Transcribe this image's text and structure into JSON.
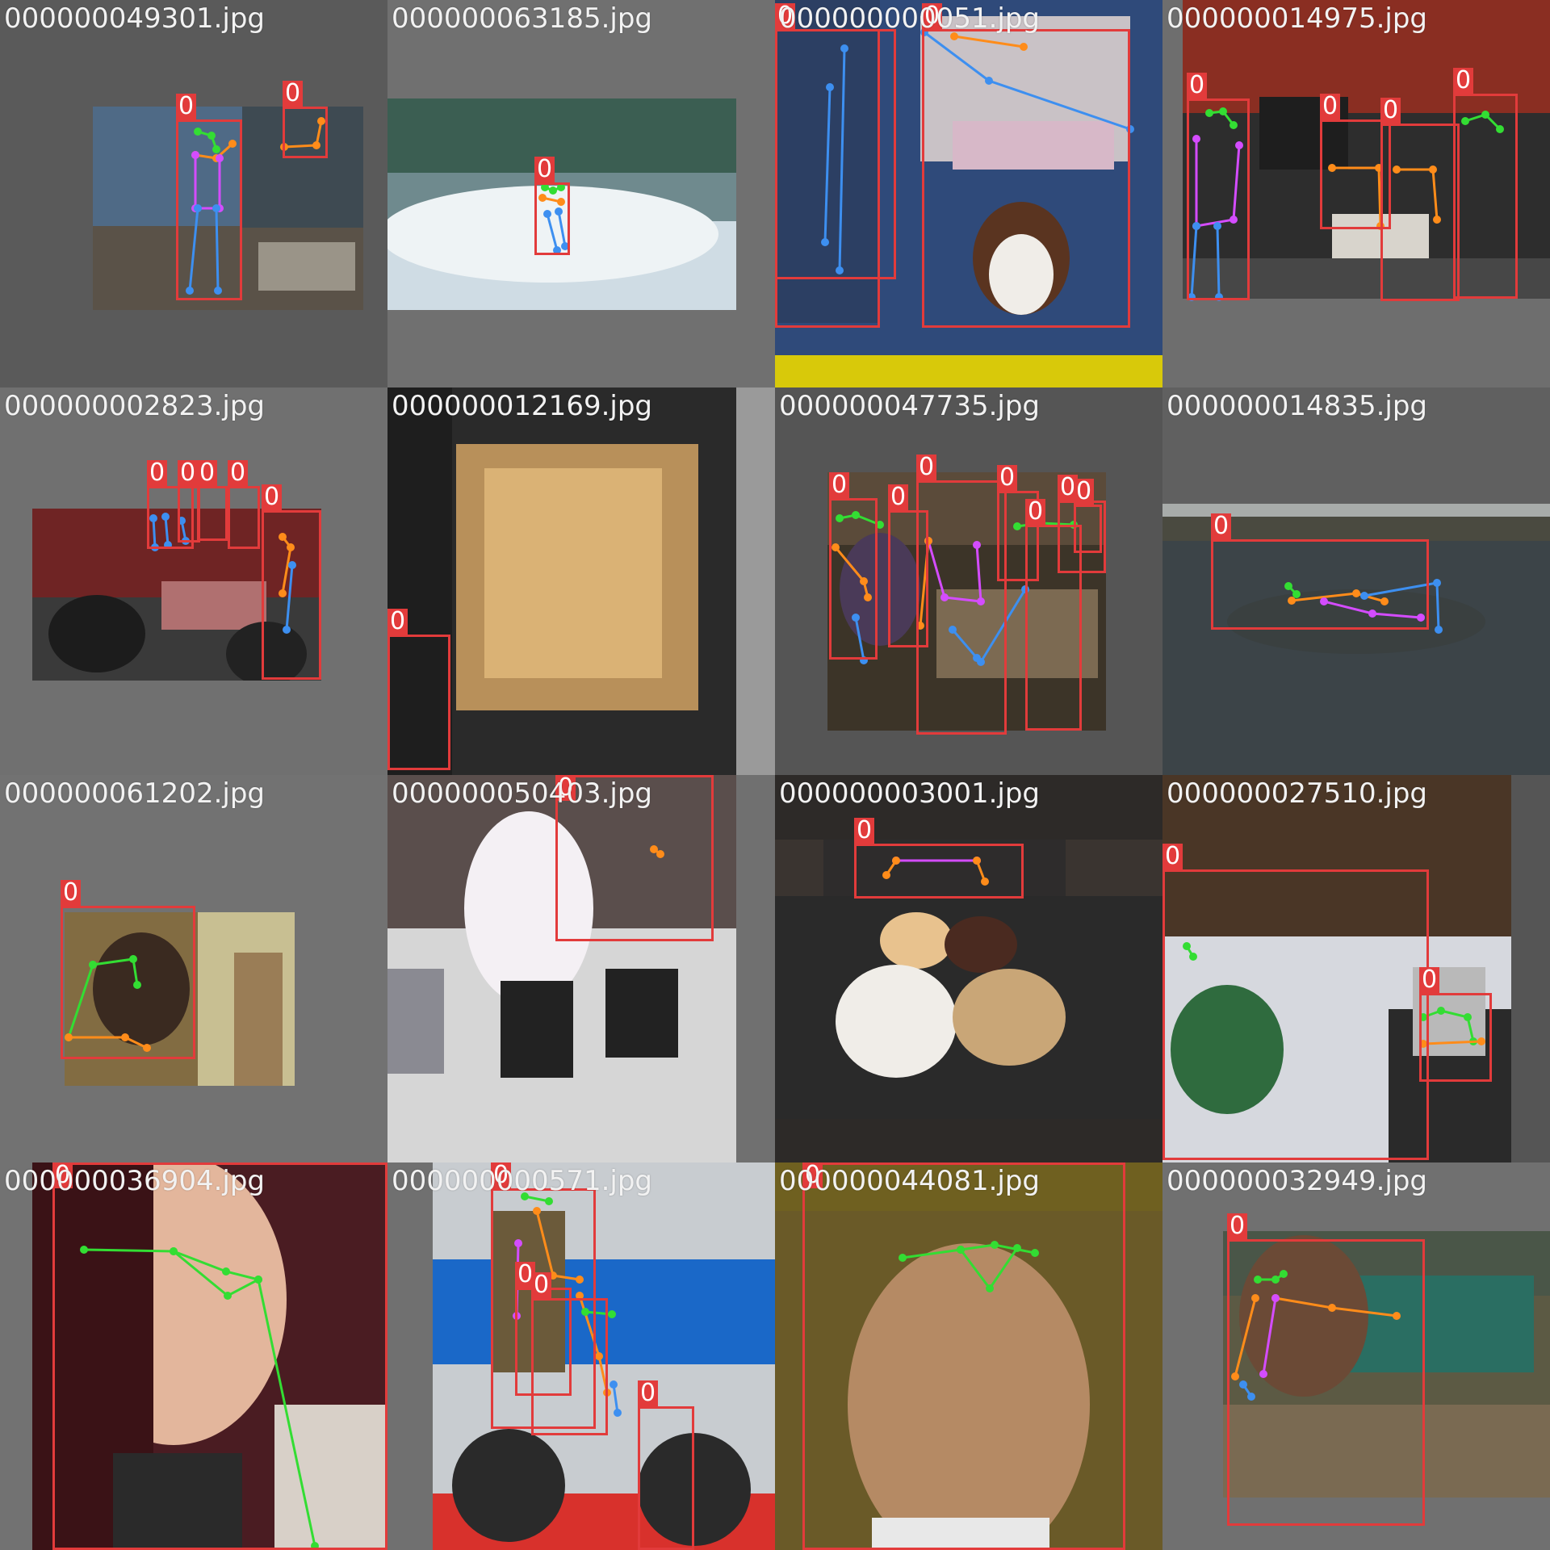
{
  "mosaic": {
    "tiles": [
      {
        "filename": "000000049301.jpg",
        "detections": [
          {
            "label": "0"
          },
          {
            "label": "0"
          }
        ]
      },
      {
        "filename": "000000063185.jpg",
        "detections": [
          {
            "label": "0"
          }
        ]
      },
      {
        "filename": "000000000051.jpg",
        "detections": [
          {
            "label": "0"
          },
          {
            "label": "0"
          },
          {
            "label": "0"
          }
        ]
      },
      {
        "filename": "000000014975.jpg",
        "detections": [
          {
            "label": "0"
          },
          {
            "label": "0"
          },
          {
            "label": "0"
          },
          {
            "label": "0"
          }
        ]
      },
      {
        "filename": "000000002823.jpg",
        "detections": [
          {
            "label": "0"
          },
          {
            "label": "0"
          },
          {
            "label": "0"
          },
          {
            "label": "0"
          },
          {
            "label": "0"
          }
        ]
      },
      {
        "filename": "000000012169.jpg",
        "detections": [
          {
            "label": "0"
          }
        ]
      },
      {
        "filename": "000000047735.jpg",
        "detections": [
          {
            "label": "0"
          },
          {
            "label": "0"
          },
          {
            "label": "0"
          },
          {
            "label": "0"
          },
          {
            "label": "0"
          },
          {
            "label": "0"
          },
          {
            "label": "0"
          }
        ]
      },
      {
        "filename": "000000014835.jpg",
        "detections": [
          {
            "label": "0"
          }
        ]
      },
      {
        "filename": "000000061202.jpg",
        "detections": [
          {
            "label": "0"
          }
        ]
      },
      {
        "filename": "000000050403.jpg",
        "detections": [
          {
            "label": "0"
          }
        ]
      },
      {
        "filename": "000000003001.jpg",
        "detections": [
          {
            "label": "0"
          }
        ]
      },
      {
        "filename": "000000027510.jpg",
        "detections": [
          {
            "label": "0"
          },
          {
            "label": "0"
          }
        ]
      },
      {
        "filename": "000000036904.jpg",
        "detections": [
          {
            "label": "0"
          }
        ]
      },
      {
        "filename": "000000000571.jpg",
        "detections": [
          {
            "label": "0"
          },
          {
            "label": "0"
          },
          {
            "label": "0"
          },
          {
            "label": "0"
          }
        ]
      },
      {
        "filename": "000000044081.jpg",
        "detections": [
          {
            "label": "0"
          }
        ]
      },
      {
        "filename": "000000032949.jpg",
        "detections": [
          {
            "label": "0"
          }
        ]
      }
    ]
  },
  "colors": {
    "box": "#e23b3b",
    "face_limbs": "#33dd33",
    "arm_limbs": "#ff8c1a",
    "leg_limbs": "#3d8ff0",
    "torso_limbs": "#d44cff"
  }
}
